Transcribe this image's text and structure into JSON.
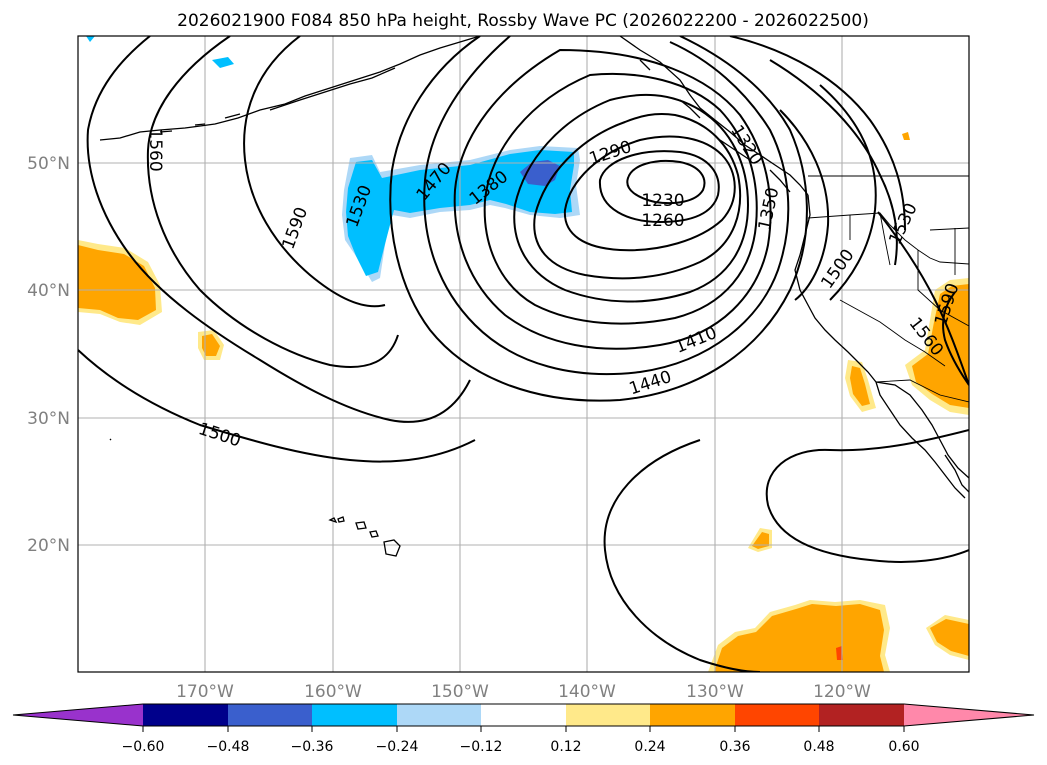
{
  "title": "2026021900 F084 850 hPa height, Rossby Wave PC (2026022200 - 2026022500)",
  "lat_labels": [
    "50°N",
    "40°N",
    "30°N",
    "20°N"
  ],
  "lon_labels": [
    "170°W",
    "160°W",
    "150°W",
    "140°W",
    "130°W",
    "120°W"
  ],
  "map_extent": {
    "lon_min": -180,
    "lon_max": -110,
    "lat_min": 10,
    "lat_max": 60
  },
  "contour_labels": [
    "1590",
    "1560",
    "1530",
    "1500",
    "1470",
    "1380",
    "1290",
    "1230",
    "1260",
    "1350",
    "1410",
    "1440",
    "1500",
    "1530",
    "1560",
    "1590",
    "1320"
  ],
  "colorbar": {
    "ticks": [
      "−0.60",
      "−0.48",
      "−0.36",
      "−0.24",
      "−0.12",
      "0.12",
      "0.24",
      "0.36",
      "0.48",
      "0.60"
    ],
    "colors": [
      "#9932cc",
      "#00008b",
      "#3a5fcd",
      "#00bfff",
      "#add8f7",
      "#ffffff",
      "#ffe98a",
      "#ffa500",
      "#ff4500",
      "#b22222",
      "#ff88aa"
    ]
  }
}
